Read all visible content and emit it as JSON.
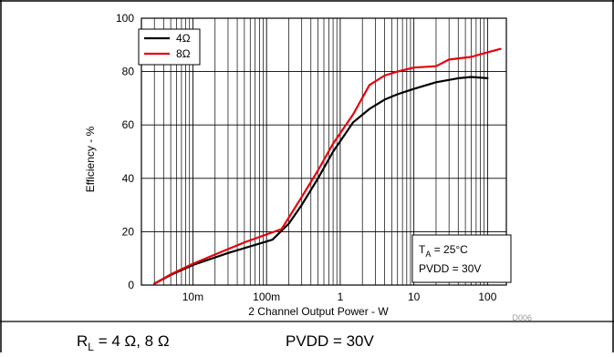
{
  "chart_data": {
    "type": "line",
    "xscale": "log",
    "xlabel": "2 Channel Output Power - W",
    "ylabel": "Efficiency - %",
    "xlim": [
      0.002,
      180
    ],
    "ylim": [
      0,
      100
    ],
    "yticks": [
      0,
      20,
      40,
      60,
      80,
      100
    ],
    "xticks": [
      {
        "value": 0.01,
        "label": "10m"
      },
      {
        "value": 0.1,
        "label": "100m"
      },
      {
        "value": 1,
        "label": "1"
      },
      {
        "value": 10,
        "label": "10"
      },
      {
        "value": 100,
        "label": "100"
      }
    ],
    "grid": true,
    "legend_position": "top-left",
    "series": [
      {
        "name": "4Ω",
        "color": "#000000",
        "points": [
          [
            0.003,
            0.5
          ],
          [
            0.005,
            3.8
          ],
          [
            0.01,
            7.5
          ],
          [
            0.03,
            12
          ],
          [
            0.12,
            17
          ],
          [
            0.2,
            23
          ],
          [
            0.3,
            30
          ],
          [
            0.5,
            40
          ],
          [
            0.8,
            50
          ],
          [
            1.5,
            61
          ],
          [
            2.5,
            66
          ],
          [
            4,
            69.5
          ],
          [
            6,
            71.5
          ],
          [
            10,
            73.5
          ],
          [
            20,
            76
          ],
          [
            40,
            77.5
          ],
          [
            60,
            78
          ],
          [
            100,
            77.5
          ]
        ]
      },
      {
        "name": "8Ω",
        "color": "#e8000b",
        "points": [
          [
            0.003,
            0.5
          ],
          [
            0.005,
            4
          ],
          [
            0.01,
            8
          ],
          [
            0.05,
            16
          ],
          [
            0.16,
            21
          ],
          [
            0.3,
            33
          ],
          [
            0.5,
            43
          ],
          [
            0.8,
            53
          ],
          [
            1.5,
            64
          ],
          [
            2.5,
            75
          ],
          [
            4,
            78.5
          ],
          [
            6,
            80
          ],
          [
            10,
            81.5
          ],
          [
            20,
            82
          ],
          [
            30,
            84.5
          ],
          [
            60,
            85.5
          ],
          [
            80,
            86.5
          ],
          [
            150,
            88.5
          ]
        ]
      }
    ],
    "annotation": {
      "lines": [
        "T",
        "A",
        " = 25°C",
        "PVDD = 30V"
      ]
    },
    "source_code": "D006"
  },
  "caption": {
    "rl_main": "R",
    "rl_sub": "L",
    "rl_values": " = 4 Ω, 8 Ω",
    "pvdd": "PVDD = 30V"
  }
}
